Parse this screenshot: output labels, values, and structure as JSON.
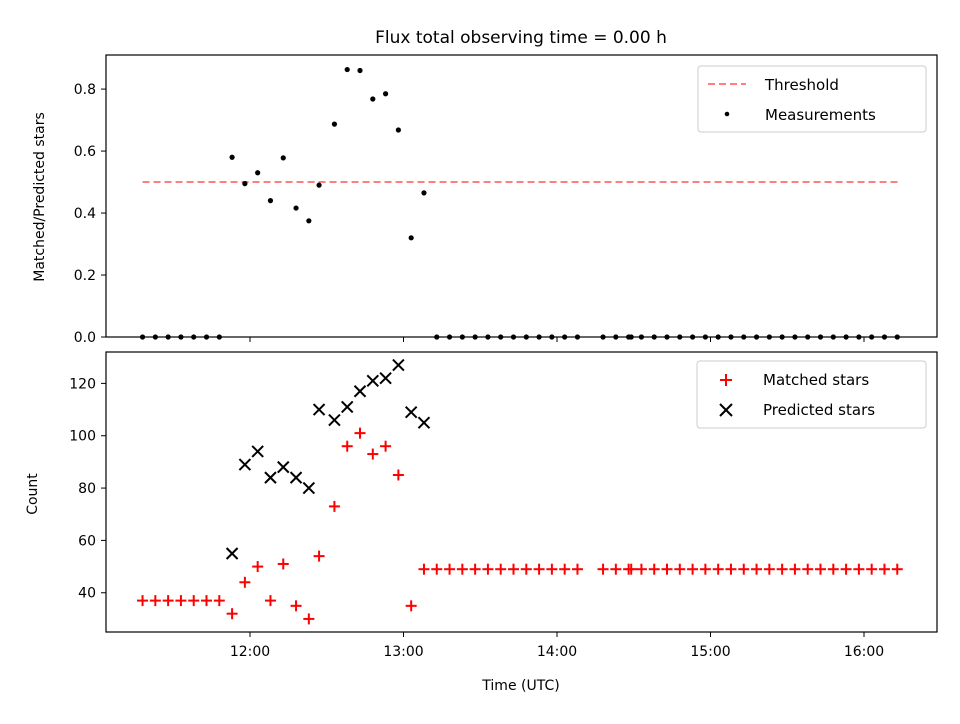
{
  "chart_data": [
    {
      "type": "scatter",
      "title": "Flux total observing time = 0.00 h",
      "xlabel": "",
      "ylabel": "Matched/Predicted stars",
      "ylim": [
        0,
        0.91
      ],
      "xlim": [
        "11:04",
        "16:30"
      ],
      "yticks": [
        "0.0",
        "0.2",
        "0.4",
        "0.6",
        "0.8"
      ],
      "grid": false,
      "legend": "top-right",
      "threshold": {
        "name": "Threshold",
        "value": 0.5,
        "x_start": "11:18",
        "x_end": "16:14",
        "color": "#ff7f7f",
        "style": "dashed"
      },
      "series": [
        {
          "name": "Measurements",
          "color": "#000000",
          "marker": "dot",
          "x": [
            "11:18",
            "11:23",
            "11:28",
            "11:33",
            "11:38",
            "11:43",
            "11:48",
            "11:53",
            "11:58",
            "12:03",
            "12:08",
            "12:13",
            "12:18",
            "12:23",
            "12:27",
            "12:33",
            "12:38",
            "12:43",
            "12:48",
            "12:53",
            "12:58",
            "13:03",
            "13:08",
            "13:13",
            "13:18",
            "13:23",
            "13:28",
            "13:33",
            "13:38",
            "13:43",
            "13:48",
            "13:53",
            "13:58",
            "14:03",
            "14:08",
            "14:18",
            "14:23",
            "14:28",
            "14:29",
            "14:33",
            "14:38",
            "14:43",
            "14:48",
            "14:53",
            "14:58",
            "15:03",
            "15:08",
            "15:13",
            "15:18",
            "15:23",
            "15:28",
            "15:33",
            "15:38",
            "15:43",
            "15:48",
            "15:53",
            "15:58",
            "16:03",
            "16:08",
            "16:13"
          ],
          "y": [
            0,
            0,
            0,
            0,
            0,
            0,
            0,
            0.58,
            0.495,
            0.53,
            0.44,
            0.578,
            0.416,
            0.375,
            0.49,
            0.687,
            0.863,
            0.86,
            0.768,
            0.785,
            0.668,
            0.32,
            0.465,
            0,
            0,
            0,
            0,
            0,
            0,
            0,
            0,
            0,
            0,
            0,
            0,
            0,
            0,
            0,
            0,
            0,
            0,
            0,
            0,
            0,
            0,
            0,
            0,
            0,
            0,
            0,
            0,
            0,
            0,
            0,
            0,
            0,
            0,
            0,
            0,
            0
          ]
        }
      ]
    },
    {
      "type": "scatter",
      "title": "",
      "xlabel": "Time (UTC)",
      "ylabel": "Count",
      "ylim": [
        25,
        132
      ],
      "xlim": [
        "11:04",
        "16:30"
      ],
      "xticks": [
        "12:00",
        "13:00",
        "14:00",
        "15:00",
        "16:00"
      ],
      "yticks": [
        "40",
        "60",
        "80",
        "100",
        "120"
      ],
      "grid": false,
      "legend": "top-right",
      "series": [
        {
          "name": "Matched stars",
          "color": "#ff0000",
          "marker": "plus",
          "x": [
            "11:18",
            "11:23",
            "11:28",
            "11:33",
            "11:38",
            "11:43",
            "11:48",
            "11:53",
            "11:58",
            "12:03",
            "12:08",
            "12:13",
            "12:18",
            "12:23",
            "12:27",
            "12:33",
            "12:38",
            "12:43",
            "12:48",
            "12:53",
            "12:58",
            "13:03",
            "13:08",
            "13:13",
            "13:18",
            "13:23",
            "13:28",
            "13:33",
            "13:38",
            "13:43",
            "13:48",
            "13:53",
            "13:58",
            "14:03",
            "14:08",
            "14:18",
            "14:23",
            "14:28",
            "14:29",
            "14:33",
            "14:38",
            "14:43",
            "14:48",
            "14:53",
            "14:58",
            "15:03",
            "15:08",
            "15:13",
            "15:18",
            "15:23",
            "15:28",
            "15:33",
            "15:38",
            "15:43",
            "15:48",
            "15:53",
            "15:58",
            "16:03",
            "16:08",
            "16:13"
          ],
          "y": [
            37,
            37,
            37,
            37,
            37,
            37,
            37,
            32,
            44,
            50,
            37,
            51,
            35,
            30,
            54,
            73,
            96,
            101,
            93,
            96,
            85,
            35,
            49,
            49,
            49,
            49,
            49,
            49,
            49,
            49,
            49,
            49,
            49,
            49,
            49,
            49,
            49,
            49,
            49,
            49,
            49,
            49,
            49,
            49,
            49,
            49,
            49,
            49,
            49,
            49,
            49,
            49,
            49,
            49,
            49,
            49,
            49,
            49,
            49,
            49
          ]
        },
        {
          "name": "Predicted stars",
          "color": "#000000",
          "marker": "x",
          "x": [
            "11:53",
            "11:58",
            "12:03",
            "12:08",
            "12:13",
            "12:18",
            "12:23",
            "12:27",
            "12:33",
            "12:38",
            "12:43",
            "12:48",
            "12:53",
            "12:58",
            "13:03",
            "13:08"
          ],
          "y": [
            55,
            89,
            94,
            84,
            88,
            84,
            80,
            110,
            106,
            111,
            117,
            121,
            122,
            127,
            109,
            105
          ]
        }
      ]
    }
  ]
}
